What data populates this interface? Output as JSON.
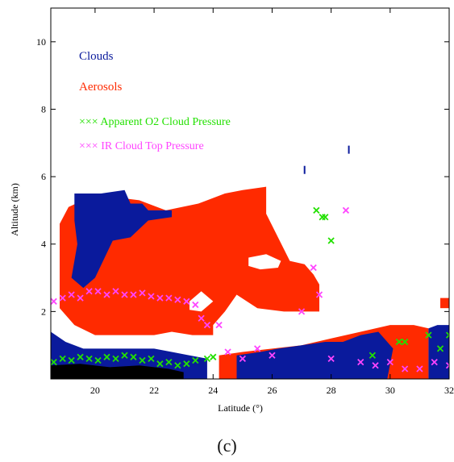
{
  "chart_data": {
    "type": "scatter",
    "xlabel": "Latitude (°)",
    "ylabel": "Altitude (km)",
    "xlim": [
      18.5,
      32
    ],
    "ylim": [
      0,
      11
    ],
    "x_ticks": [
      20,
      22,
      24,
      26,
      28,
      30,
      32
    ],
    "y_ticks": [
      2,
      4,
      6,
      8,
      10
    ],
    "legend": [
      {
        "label": "Clouds",
        "marker": "",
        "color": "#0a1a9c"
      },
      {
        "label": "Aerosols",
        "marker": "",
        "color": "#ff2a00"
      },
      {
        "label": "Apparent O2 Cloud Pressure",
        "marker": "×××",
        "color": "#22e000"
      },
      {
        "label": "IR Cloud Top Pressure",
        "marker": "×××",
        "color": "#ff44ff"
      }
    ],
    "legend_placement": "top-left",
    "grid": false,
    "colors": {
      "clouds": "#0a1a9c",
      "aerosols": "#ff2a00",
      "o2": "#22e000",
      "ir": "#ff44ff",
      "surface": "#000000"
    },
    "regions": {
      "aerosol_main": [
        [
          18.8,
          2.1
        ],
        [
          18.8,
          4.6
        ],
        [
          19.1,
          5.1
        ],
        [
          19.6,
          5.3
        ],
        [
          20.6,
          5.4
        ],
        [
          21.5,
          5.3
        ],
        [
          22.4,
          5.0
        ],
        [
          23.5,
          5.2
        ],
        [
          24.4,
          5.5
        ],
        [
          25.0,
          5.6
        ],
        [
          25.8,
          5.7
        ],
        [
          25.8,
          4.9
        ],
        [
          26.6,
          3.5
        ],
        [
          27.1,
          3.4
        ],
        [
          27.4,
          3.1
        ],
        [
          27.6,
          2.8
        ],
        [
          27.6,
          2.0
        ],
        [
          26.4,
          2.0
        ],
        [
          25.5,
          2.1
        ],
        [
          24.8,
          2.5
        ],
        [
          24.4,
          2.0
        ],
        [
          24.0,
          1.6
        ],
        [
          24.0,
          1.3
        ],
        [
          23.3,
          1.3
        ],
        [
          22.6,
          1.4
        ],
        [
          22.0,
          1.3
        ],
        [
          21.5,
          1.3
        ],
        [
          20.0,
          1.3
        ],
        [
          19.3,
          1.6
        ]
      ],
      "aerosol_holes": [
        [
          [
            25.2,
            3.6
          ],
          [
            25.8,
            3.7
          ],
          [
            26.3,
            3.5
          ],
          [
            26.2,
            3.3
          ],
          [
            25.6,
            3.25
          ],
          [
            25.2,
            3.35
          ]
        ],
        [
          [
            23.2,
            2.3
          ],
          [
            23.6,
            2.6
          ],
          [
            24.0,
            2.3
          ],
          [
            23.6,
            2.0
          ],
          [
            23.2,
            2.05
          ]
        ]
      ],
      "cloud_upper": [
        [
          19.3,
          4.7
        ],
        [
          19.3,
          5.5
        ],
        [
          20.2,
          5.5
        ],
        [
          21.0,
          5.6
        ],
        [
          21.2,
          5.2
        ],
        [
          21.6,
          5.2
        ],
        [
          21.8,
          5.0
        ],
        [
          22.6,
          5.0
        ],
        [
          22.6,
          4.8
        ],
        [
          21.8,
          4.7
        ],
        [
          21.2,
          4.2
        ],
        [
          20.6,
          4.1
        ],
        [
          20.0,
          3.0
        ],
        [
          19.6,
          2.7
        ],
        [
          19.2,
          3.0
        ],
        [
          19.4,
          4.0
        ]
      ],
      "aerosol_low": [
        [
          24.2,
          0.0
        ],
        [
          24.2,
          0.7
        ],
        [
          25.0,
          0.8
        ],
        [
          26.0,
          0.9
        ],
        [
          27.0,
          1.0
        ],
        [
          28.0,
          1.2
        ],
        [
          29.0,
          1.4
        ],
        [
          30.0,
          1.6
        ],
        [
          30.8,
          1.6
        ],
        [
          31.3,
          1.5
        ],
        [
          31.3,
          0.0
        ]
      ],
      "cloud_low": [
        [
          18.5,
          0.0
        ],
        [
          18.5,
          1.4
        ],
        [
          19.0,
          1.1
        ],
        [
          19.6,
          0.9
        ],
        [
          20.5,
          0.9
        ],
        [
          21.4,
          0.9
        ],
        [
          22.0,
          0.9
        ],
        [
          22.6,
          0.8
        ],
        [
          23.2,
          0.7
        ],
        [
          23.8,
          0.6
        ],
        [
          23.8,
          0.0
        ]
      ],
      "cloud_low_right": [
        [
          24.8,
          0.0
        ],
        [
          24.8,
          0.7
        ],
        [
          25.6,
          0.8
        ],
        [
          26.2,
          0.9
        ],
        [
          27.0,
          1.0
        ],
        [
          27.8,
          1.1
        ],
        [
          28.4,
          1.1
        ],
        [
          29.0,
          1.3
        ],
        [
          29.6,
          1.4
        ],
        [
          29.8,
          1.2
        ],
        [
          30.1,
          0.9
        ],
        [
          29.9,
          0.0
        ]
      ],
      "cloud_right": [
        [
          31.3,
          0.0
        ],
        [
          31.3,
          1.5
        ],
        [
          31.6,
          1.6
        ],
        [
          32.0,
          1.6
        ],
        [
          32.0,
          0.0
        ]
      ],
      "aerosol_right_box": [
        [
          32.0,
          2.1
        ],
        [
          31.7,
          2.1
        ],
        [
          31.7,
          2.4
        ],
        [
          32.0,
          2.4
        ]
      ],
      "surface": [
        [
          18.5,
          0.0
        ],
        [
          18.5,
          0.4
        ],
        [
          19.5,
          0.45
        ],
        [
          20.5,
          0.35
        ],
        [
          21.5,
          0.4
        ],
        [
          22.5,
          0.3
        ],
        [
          23.0,
          0.2
        ],
        [
          23.0,
          0.0
        ]
      ]
    },
    "series": [
      {
        "name": "Apparent O2 Cloud Pressure",
        "color": "#22e000",
        "x": [
          18.6,
          18.9,
          19.2,
          19.5,
          19.8,
          20.1,
          20.4,
          20.7,
          21.0,
          21.3,
          21.6,
          21.9,
          22.2,
          22.5,
          22.8,
          23.1,
          23.4,
          23.8,
          24.0,
          27.5,
          27.7,
          27.8,
          28.0,
          29.4,
          30.3,
          30.5,
          31.3,
          31.7,
          32.0
        ],
        "y": [
          0.5,
          0.6,
          0.55,
          0.65,
          0.6,
          0.55,
          0.65,
          0.6,
          0.7,
          0.65,
          0.55,
          0.6,
          0.45,
          0.5,
          0.4,
          0.45,
          0.55,
          0.6,
          0.65,
          5.0,
          4.8,
          4.8,
          4.1,
          0.7,
          1.1,
          1.1,
          1.3,
          0.9,
          1.3
        ]
      },
      {
        "name": "IR Cloud Top Pressure",
        "color": "#ff44ff",
        "x": [
          18.6,
          18.9,
          19.2,
          19.5,
          19.8,
          20.1,
          20.4,
          20.7,
          21.0,
          21.3,
          21.6,
          21.9,
          22.2,
          22.5,
          22.8,
          23.1,
          23.4,
          23.6,
          23.8,
          24.2,
          24.5,
          25.0,
          25.5,
          26.0,
          27.0,
          27.4,
          27.6,
          28.0,
          28.5,
          29.0,
          29.5,
          30.0,
          30.5,
          31.0,
          31.5,
          32.0
        ],
        "y": [
          2.3,
          2.4,
          2.5,
          2.4,
          2.6,
          2.6,
          2.5,
          2.6,
          2.5,
          2.5,
          2.55,
          2.45,
          2.4,
          2.4,
          2.35,
          2.3,
          2.2,
          1.8,
          1.6,
          1.6,
          0.8,
          0.6,
          0.9,
          0.7,
          2.0,
          3.3,
          2.5,
          0.6,
          5.0,
          0.5,
          0.4,
          0.5,
          0.3,
          0.3,
          0.5,
          0.4
        ]
      }
    ],
    "isolated_marks": [
      [
        27.1,
        6.2
      ],
      [
        28.6,
        6.8
      ]
    ]
  },
  "caption": "(c)"
}
